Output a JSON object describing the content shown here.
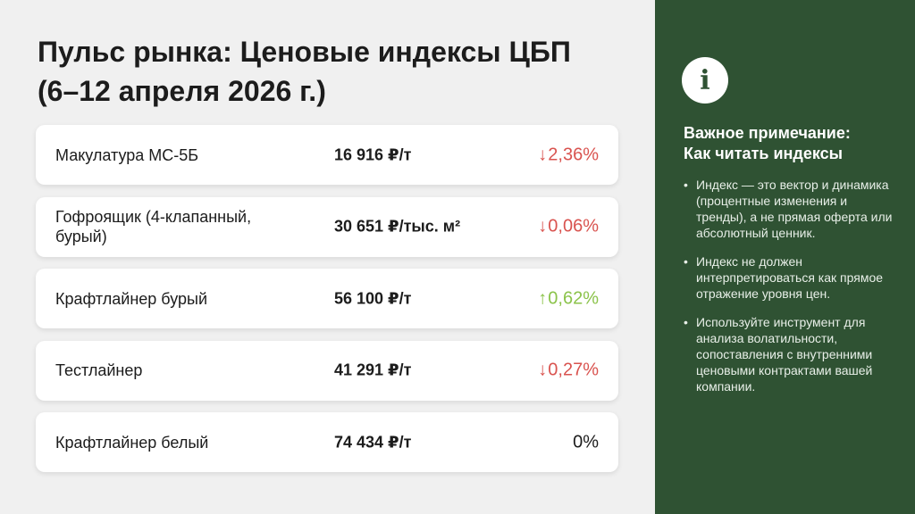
{
  "title": {
    "line1": "Пульс рынка: Ценовые индексы ЦБП",
    "line2": "(6–12 апреля 2026 г.)"
  },
  "rows": [
    {
      "name": "Макулатура МС-5Б",
      "price": "16 916 ₽/т",
      "change": "2,36%",
      "direction": "down",
      "arrow": "↓"
    },
    {
      "name": "Гофроящик (4-клапанный, бурый)",
      "price": "30 651 ₽/тыс. м²",
      "change": "0,06%",
      "direction": "down",
      "arrow": "↓"
    },
    {
      "name": "Крафтлайнер бурый",
      "price": "56 100 ₽/т",
      "change": "0,62%",
      "direction": "up",
      "arrow": "↑"
    },
    {
      "name": "Тестлайнер",
      "price": "41 291 ₽/т",
      "change": "0,27%",
      "direction": "down",
      "arrow": "↓"
    },
    {
      "name": "Крафтлайнер белый",
      "price": "74 434 ₽/т",
      "change": "0%",
      "direction": "flat",
      "arrow": ""
    }
  ],
  "note": {
    "icon": "info-icon",
    "icon_glyph": "i",
    "title_line1": "Важное примечание:",
    "title_line2": "Как читать индексы",
    "bullet_glyph": "•",
    "bullets": [
      "Индекс — это вектор и динамика (процентные изменения и тренды), а не прямая оферта или абсолютный ценник.",
      "Индекс не должен интерпретироваться как прямое отражение уровня цен.",
      "Используйте инструмент для анализа волатильности, сопоставления с внутренними ценовыми контрактами вашей компании."
    ]
  },
  "colors": {
    "panel": "#2f5233",
    "down": "#d9534f",
    "up": "#8bc34a"
  }
}
